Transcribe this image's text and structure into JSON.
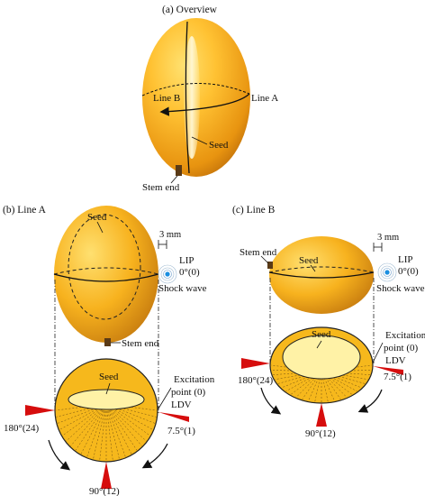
{
  "colors": {
    "fruit_light": "#ffd24a",
    "fruit_mid": "#f2a814",
    "fruit_dark": "#b86a08",
    "disc_fill": "#f6b81c",
    "seed_fill": "#fff2a6",
    "marker_red": "#d60d0d",
    "lip_blue": "#1b8fe0",
    "stem": "#5a3a16"
  },
  "panel_a": {
    "title": "(a) Overview",
    "line_b": "Line B",
    "line_a": "Line A",
    "seed": "Seed",
    "stem_end": "Stem end"
  },
  "panel_b": {
    "title": "(b) Line A",
    "seed": "Seed",
    "scale": "3 mm",
    "lip": "LIP",
    "lip_angle": "0°(0)",
    "shock_wave": "Shock wave",
    "stem_end": "Stem end",
    "disc_seed": "Seed",
    "excitation_line1": "Excitation",
    "excitation_line2": "point (0)",
    "ldv": "LDV",
    "angle_7_5": "7.5°(1)",
    "angle_180": "180°(24)",
    "angle_90": "90°(12)"
  },
  "panel_c": {
    "title": "(c) Line B",
    "stem_end": "Stem end",
    "seed": "Seed",
    "scale": "3 mm",
    "lip": "LIP",
    "lip_angle": "0°(0)",
    "shock_wave": "Shock wave",
    "disc_seed": "Seed",
    "excitation_line1": "Excitation",
    "excitation_line2": "point (0)",
    "ldv": "LDV",
    "angle_7_5": "7.5°(1)",
    "angle_180": "180°(24)",
    "angle_90": "90°(12)"
  }
}
